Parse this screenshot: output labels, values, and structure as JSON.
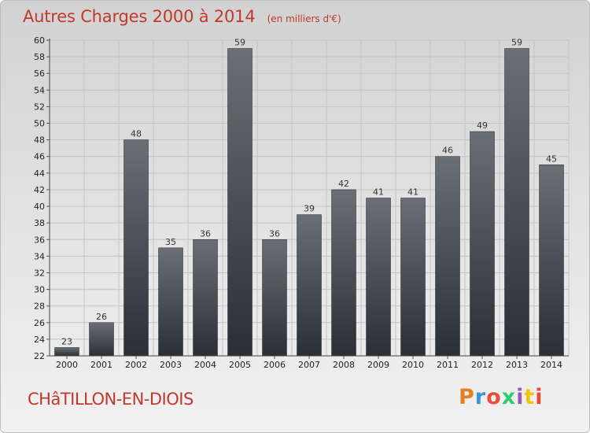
{
  "header": {
    "title": "Autres Charges 2000 à 2014",
    "subtitle": "(en milliers d'€)"
  },
  "commune": "CHâTILLON-EN-DIOIS",
  "logo": {
    "text": "Proxiti",
    "colors": [
      "#e67e22",
      "#3498db",
      "#e74c3c",
      "#2ecc71",
      "#9b59b6",
      "#f1c40f",
      "#e74c3c"
    ]
  },
  "colors": {
    "title": "#c0392b",
    "bar_top": "#6a6f76",
    "bar_bottom": "#2a2f36",
    "grid": "#c4c4c4"
  },
  "chart_data": {
    "type": "bar",
    "title": "Autres Charges 2000 à 2014",
    "subtitle": "(en milliers d'€)",
    "xlabel": "",
    "ylabel": "",
    "categories": [
      "2000",
      "2001",
      "2002",
      "2003",
      "2004",
      "2005",
      "2006",
      "2007",
      "2008",
      "2009",
      "2010",
      "2011",
      "2012",
      "2013",
      "2014"
    ],
    "values": [
      23,
      26,
      48,
      35,
      36,
      59,
      36,
      39,
      42,
      41,
      41,
      46,
      49,
      59,
      45
    ],
    "ylim": [
      22,
      60
    ],
    "yticks": [
      22,
      24,
      26,
      28,
      30,
      32,
      34,
      36,
      38,
      40,
      42,
      44,
      46,
      48,
      50,
      52,
      54,
      56,
      58,
      60
    ],
    "grid": true,
    "legend": "none"
  }
}
